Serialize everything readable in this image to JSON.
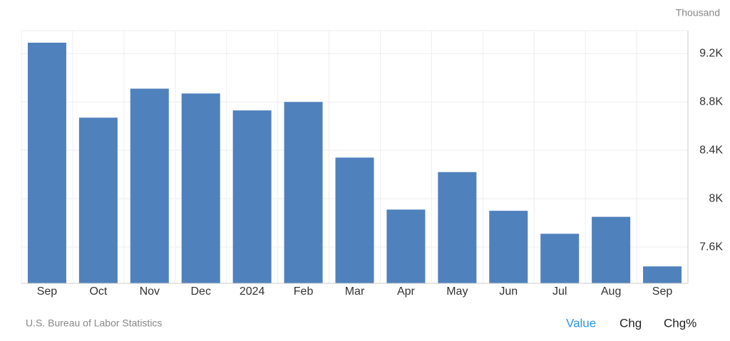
{
  "chart_data": {
    "type": "bar",
    "unit": "Thousand",
    "categories": [
      "Sep",
      "Oct",
      "Nov",
      "Dec",
      "2024",
      "Feb",
      "Mar",
      "Apr",
      "May",
      "Jun",
      "Jul",
      "Aug",
      "Sep"
    ],
    "values": [
      9.29,
      8.67,
      8.91,
      8.87,
      8.73,
      8.8,
      8.34,
      7.91,
      8.22,
      7.9,
      7.71,
      7.85,
      7.44
    ],
    "color": "#4f81bd",
    "ylim": [
      7.3,
      9.39
    ],
    "yticks": [
      {
        "value": 7.6,
        "label": "7.6K"
      },
      {
        "value": 8,
        "label": "8K"
      },
      {
        "value": 8.4,
        "label": "8.4K"
      },
      {
        "value": 8.8,
        "label": "8.8K"
      },
      {
        "value": 9.2,
        "label": "9.2K"
      }
    ],
    "grid": true,
    "source": "U.S. Bureau of Labor Statistics"
  },
  "tabs": [
    "Value",
    "Chg",
    "Chg%"
  ]
}
